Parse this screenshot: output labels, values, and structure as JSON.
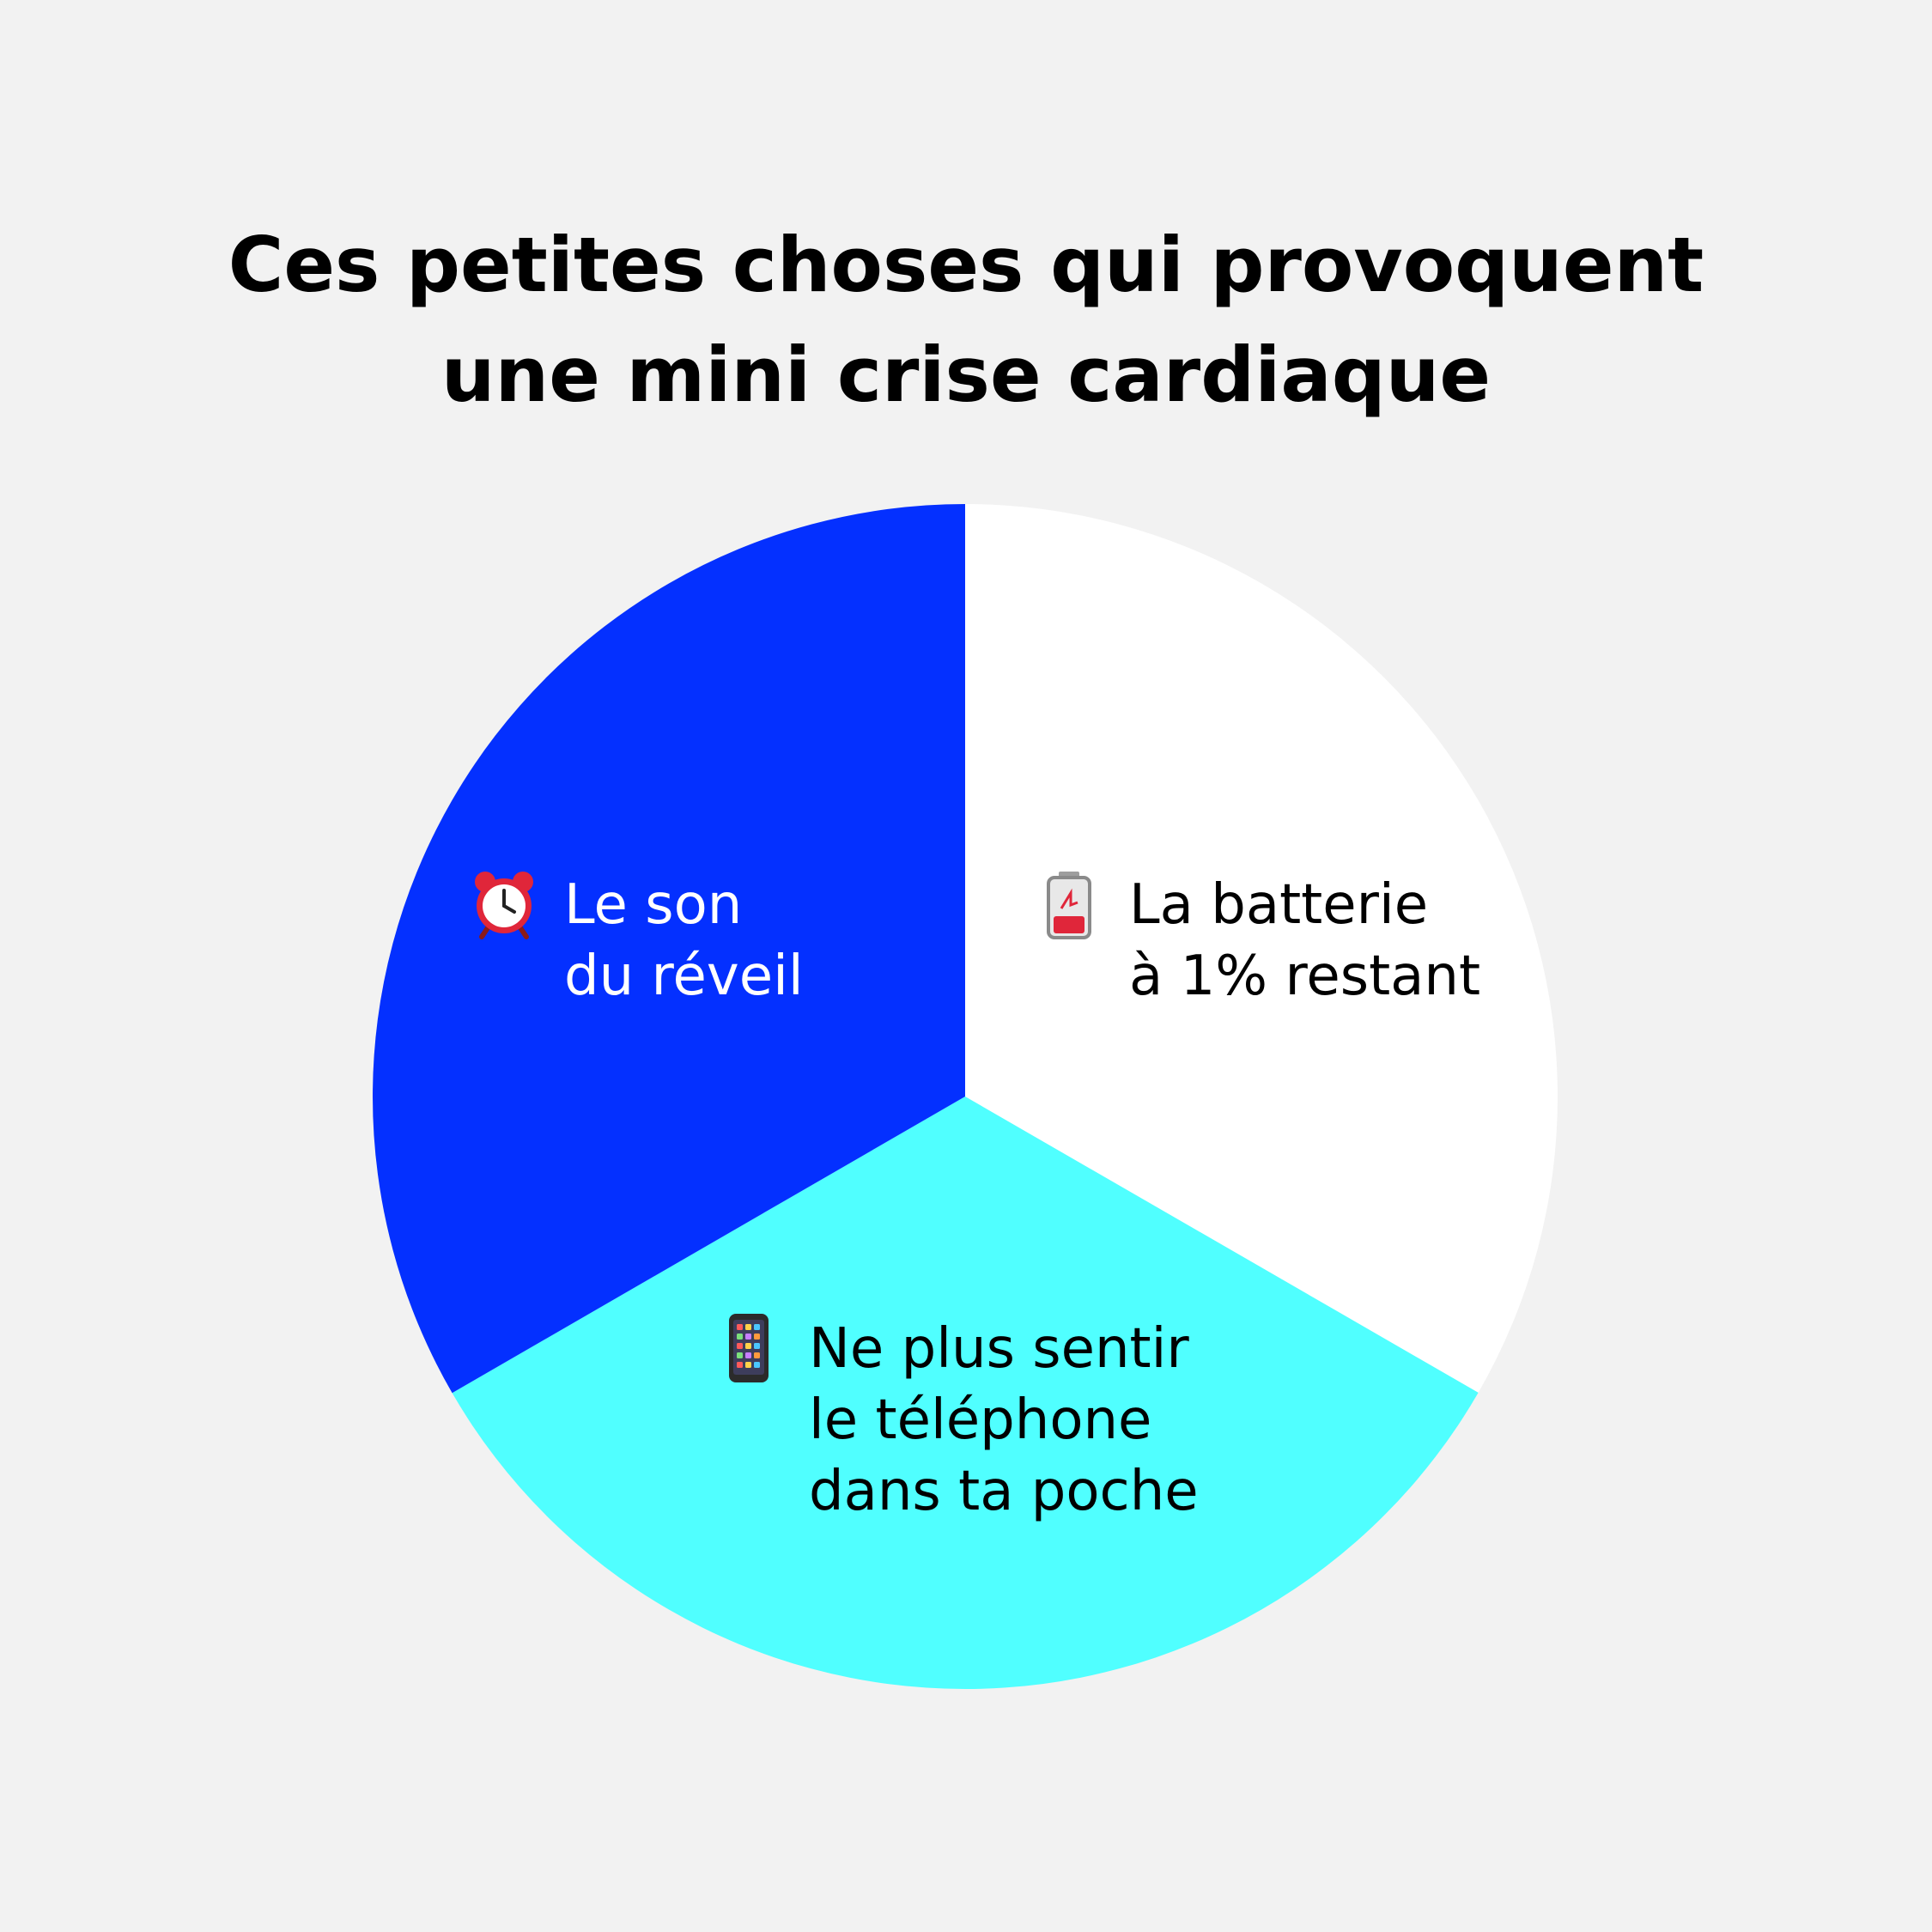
{
  "chart_data": {
    "type": "pie",
    "title_lines": [
      "Ces petites choses qui provoquent",
      "une mini crise cardiaque"
    ],
    "slices": [
      {
        "label_lines": [
          "La batterie",
          "à 1% restant"
        ],
        "icon": "low-battery-icon",
        "value": 33.33,
        "color": "#ffffff",
        "text_color": "#000000"
      },
      {
        "label_lines": [
          "Ne plus sentir",
          "le téléphone",
          "dans ta poche"
        ],
        "icon": "mobile-phone-icon",
        "value": 33.33,
        "color": "#50ffff",
        "text_color": "#000000"
      },
      {
        "label_lines": [
          "Le son",
          "du réveil"
        ],
        "icon": "alarm-clock-icon",
        "value": 33.34,
        "color": "#0430ff",
        "text_color": "#ffffff"
      }
    ],
    "start_angle_deg": 0,
    "direction": "clockwise",
    "legend": "none"
  },
  "colors": {
    "background": "#f2f2f2",
    "title": "#000000"
  }
}
